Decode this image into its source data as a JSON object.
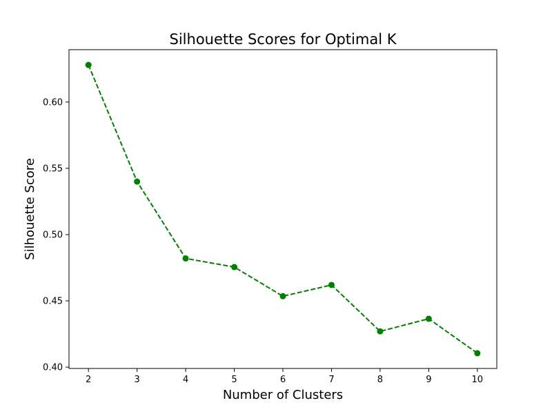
{
  "chart_data": {
    "type": "line",
    "title": "Silhouette Scores for Optimal K",
    "xlabel": "Number of Clusters",
    "ylabel": "Silhouette Score",
    "x": [
      2,
      3,
      4,
      5,
      6,
      7,
      8,
      9,
      10
    ],
    "series": [
      {
        "values": [
          0.628,
          0.54,
          0.482,
          0.4755,
          0.4535,
          0.462,
          0.427,
          0.4365,
          0.4105
        ],
        "color": "#008000",
        "line_style": "dashed",
        "marker": "circle"
      }
    ],
    "xticks": [
      "2",
      "3",
      "4",
      "5",
      "6",
      "7",
      "8",
      "9",
      "10"
    ],
    "yticks": [
      "0.40",
      "0.45",
      "0.50",
      "0.55",
      "0.60"
    ],
    "xlim": [
      1.6,
      10.4
    ],
    "ylim": [
      0.399,
      0.6395
    ],
    "grid": false,
    "legend": "none"
  }
}
